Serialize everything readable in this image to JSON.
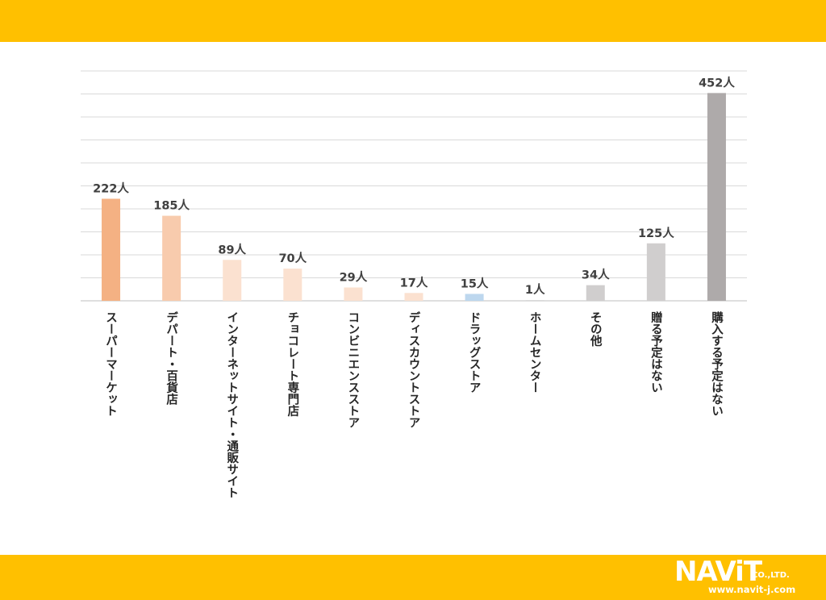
{
  "chart_data": {
    "type": "bar",
    "categories": [
      "スーパーマーケット",
      "デパート・百貨店",
      "インターネットサイト・通販サイト",
      "チョコレート専門店",
      "コンビニエンスストア",
      "ディスカウントストア",
      "ドラッグストア",
      "ホームセンター",
      "その他",
      "贈る予定はない",
      "購入する予定はない"
    ],
    "values": [
      222,
      185,
      89,
      70,
      29,
      17,
      15,
      1,
      34,
      125,
      452
    ],
    "value_labels": [
      "222人",
      "185人",
      "89人",
      "70人",
      "29人",
      "17人",
      "15人",
      "1人",
      "34人",
      "125人",
      "452人"
    ],
    "colors": [
      "#F4B183",
      "#F8CBAD",
      "#FBE1D0",
      "#FBE1D0",
      "#FBE1D0",
      "#FBE1D0",
      "#BDD7EE",
      "#D9D9D9",
      "#D0CECE",
      "#D0CECE",
      "#AEAAAA"
    ],
    "ylim": [
      0,
      500
    ],
    "grid": true,
    "unit": "人"
  },
  "branding": {
    "logo_main": "NAViT",
    "logo_suffix": "CO.,LTD.",
    "url": "www.navit-j.com"
  }
}
